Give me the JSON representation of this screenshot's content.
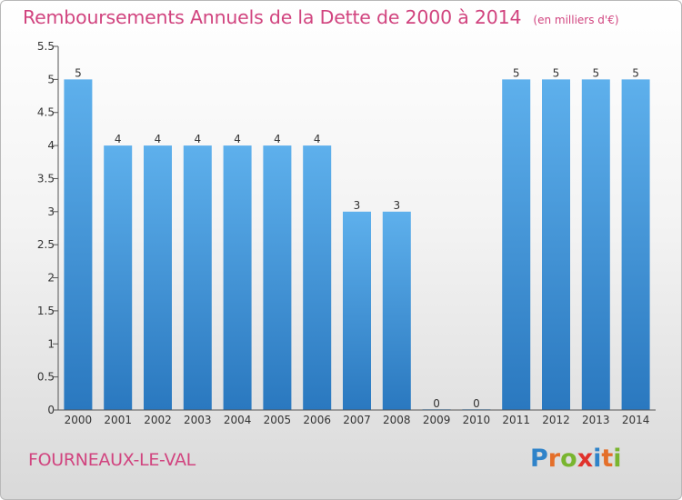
{
  "chart_data": {
    "type": "bar",
    "title": "Remboursements Annuels de la Dette de 2000 à 2014",
    "unit_note": "(en milliers d'€)",
    "categories": [
      "2000",
      "2001",
      "2002",
      "2003",
      "2004",
      "2005",
      "2006",
      "2007",
      "2008",
      "2009",
      "2010",
      "2011",
      "2012",
      "2013",
      "2014"
    ],
    "values": [
      5,
      4,
      4,
      4,
      4,
      4,
      4,
      3,
      3,
      0,
      0,
      5,
      5,
      5,
      5
    ],
    "data_labels": [
      "5",
      "4",
      "4",
      "4",
      "4",
      "4",
      "4",
      "3",
      "3",
      "0",
      "0",
      "5",
      "5",
      "5",
      "5"
    ],
    "ylim": [
      0,
      5.5
    ],
    "yticks": [
      "0",
      "0.5",
      "1",
      "1.5",
      "2",
      "2.5",
      "3",
      "3.5",
      "4",
      "4.5",
      "5",
      "5.5"
    ],
    "xlabel": "",
    "ylabel": "",
    "grid": false,
    "bar_color": "#3d8fd6"
  },
  "commune": "FOURNEAUX-LE-VAL",
  "logo": {
    "letters": [
      "P",
      "r",
      "o",
      "x",
      "i",
      "t",
      "i"
    ],
    "colors": [
      "#2f83c9",
      "#e46f2a",
      "#79b52f",
      "#e0322c",
      "#2f83c9",
      "#e46f2a",
      "#79b52f"
    ]
  },
  "colors": {
    "accent": "#d1447f"
  }
}
